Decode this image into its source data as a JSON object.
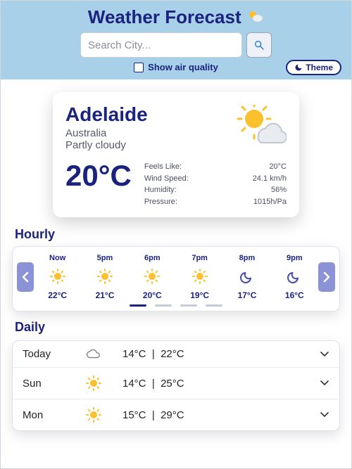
{
  "colors": {
    "header_bg": "#a8d0e8",
    "primary": "#1a237e",
    "card_bg": "#ffffff",
    "muted_text": "#565a66",
    "border": "#dfe3ec",
    "nav_btn": "#8b93d6",
    "dot_inactive": "#c6cbdc"
  },
  "header": {
    "title": "Weather Forecast",
    "search_placeholder": "Search City...",
    "air_quality_label": "Show air quality",
    "air_quality_checked": false,
    "theme_button": "Theme"
  },
  "current": {
    "city": "Adelaide",
    "country": "Australia",
    "condition": "Partly cloudy",
    "temp": "20°C",
    "icon": "partly-cloudy",
    "details": [
      {
        "k": "Feels Like:",
        "v": "20°C"
      },
      {
        "k": "Wind Speed:",
        "v": "24.1 km/h"
      },
      {
        "k": "Humidity:",
        "v": "56%"
      },
      {
        "k": "Pressure:",
        "v": "1015h/Pa"
      }
    ]
  },
  "hourly": {
    "title": "Hourly",
    "page_count": 4,
    "active_page": 0,
    "items": [
      {
        "label": "Now",
        "icon": "sunny",
        "temp": "22°C"
      },
      {
        "label": "5pm",
        "icon": "sunny",
        "temp": "21°C"
      },
      {
        "label": "6pm",
        "icon": "sunny",
        "temp": "20°C"
      },
      {
        "label": "7pm",
        "icon": "sunny",
        "temp": "19°C"
      },
      {
        "label": "8pm",
        "icon": "moon",
        "temp": "17°C"
      },
      {
        "label": "9pm",
        "icon": "moon",
        "temp": "16°C"
      }
    ]
  },
  "daily": {
    "title": "Daily",
    "items": [
      {
        "day": "Today",
        "icon": "cloud",
        "lo": "14°C",
        "hi": "22°C"
      },
      {
        "day": "Sun",
        "icon": "sunny",
        "lo": "14°C",
        "hi": "25°C"
      },
      {
        "day": "Mon",
        "icon": "sunny",
        "lo": "15°C",
        "hi": "29°C"
      }
    ]
  }
}
